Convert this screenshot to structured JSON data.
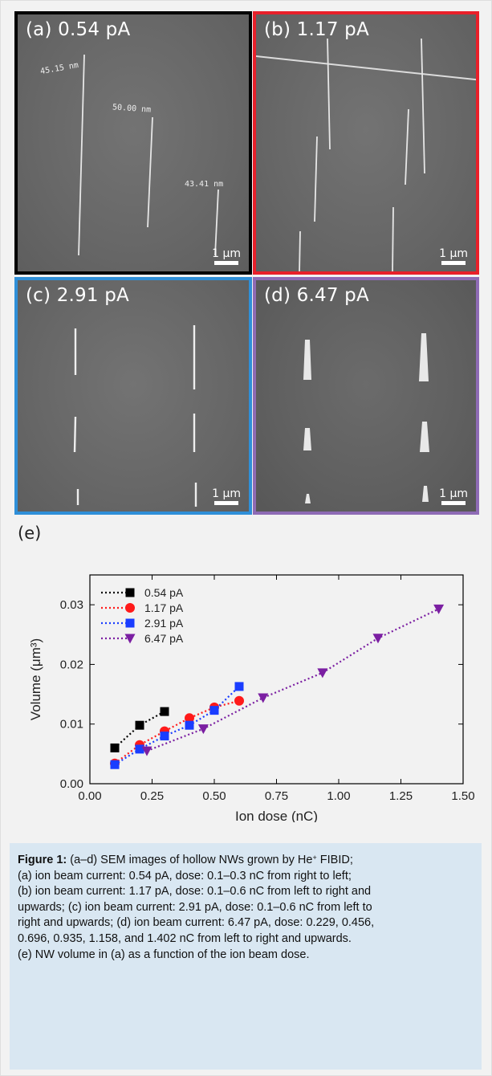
{
  "panels": [
    {
      "label": "(a) 0.54 pA",
      "border": "#000000",
      "scale": "1 μm",
      "annotations": [
        "45.15 nm",
        "50.00 nm",
        "43.41 nm"
      ]
    },
    {
      "label": "(b) 1.17 pA",
      "border": "#e8202a",
      "scale": "1 μm",
      "annotations": []
    },
    {
      "label": "(c) 2.91 pA",
      "border": "#2f8fd8",
      "scale": "1 μm",
      "annotations": []
    },
    {
      "label": "(d) 6.47 pA",
      "border": "#8e6bb5",
      "scale": "1 μm",
      "annotations": []
    }
  ],
  "chart_label": "(e)",
  "chart_data": {
    "type": "scatter",
    "xlabel": "Ion dose (nC)",
    "ylabel": "Volume (μm³)",
    "xlim": [
      0.0,
      1.5
    ],
    "ylim": [
      0.0,
      0.035
    ],
    "xticks": [
      "0.00",
      "0.25",
      "0.50",
      "0.75",
      "1.00",
      "1.25",
      "1.50"
    ],
    "yticks": [
      "0.00",
      "0.01",
      "0.02",
      "0.03"
    ],
    "legend_position": "top-left",
    "grid": false,
    "series": [
      {
        "name": "0.54 pA",
        "color": "#000000",
        "marker": "square",
        "x": [
          0.1,
          0.2,
          0.3
        ],
        "y": [
          0.006,
          0.0098,
          0.0121
        ]
      },
      {
        "name": "1.17 pA",
        "color": "#ff1a1a",
        "marker": "circle",
        "x": [
          0.1,
          0.2,
          0.3,
          0.4,
          0.5,
          0.6
        ],
        "y": [
          0.0034,
          0.0065,
          0.0088,
          0.011,
          0.0128,
          0.0139
        ]
      },
      {
        "name": "2.91 pA",
        "color": "#1a3dff",
        "marker": "square",
        "x": [
          0.1,
          0.2,
          0.3,
          0.4,
          0.5,
          0.6
        ],
        "y": [
          0.0032,
          0.0058,
          0.008,
          0.0098,
          0.0123,
          0.0163
        ]
      },
      {
        "name": "6.47 pA",
        "color": "#7b1fa2",
        "marker": "triangle-down",
        "x": [
          0.229,
          0.456,
          0.696,
          0.935,
          1.158,
          1.402
        ],
        "y": [
          0.0055,
          0.0092,
          0.0144,
          0.0186,
          0.0244,
          0.0293
        ]
      }
    ]
  },
  "caption": {
    "fig_label": "Figure 1:",
    "line_1": "(a–d) SEM images of hollow NWs grown by He",
    "line_1_sup": "+",
    "line_1_end": "FIBID;",
    "line_2": "(a) ion beam current: 0.54 pA, dose: 0.1–0.3 nC from right to left;",
    "line_3": "(b) ion beam current: 1.17 pA, dose: 0.1–0.6 nC from left to right and",
    "line_4": "upwards; (c) ion beam current: 2.91 pA, dose: 0.1–0.6 nC from left to",
    "line_5": "right and upwards; (d) ion beam current: 6.47 pA, dose: 0.229, 0.456,",
    "line_6": "0.696, 0.935, 1.158, and 1.402 nC from left to right and upwards.",
    "line_7": "(e) NW volume in (a) as a function of the ion beam dose."
  }
}
